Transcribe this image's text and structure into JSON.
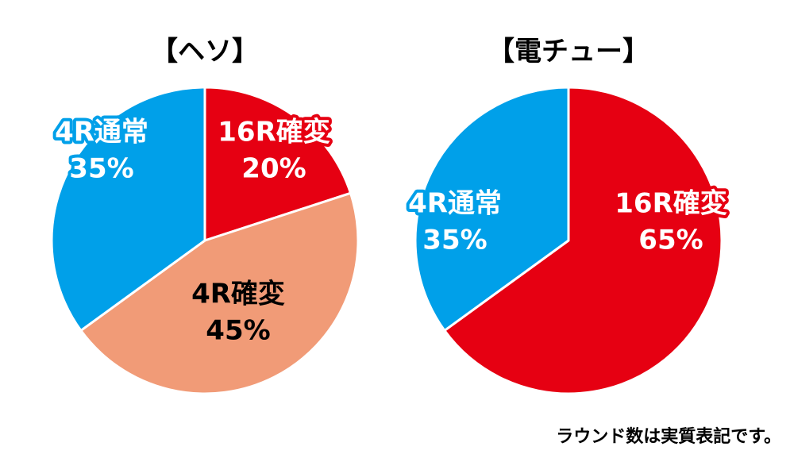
{
  "chart_data": [
    {
      "type": "pie",
      "title": "【ヘソ】",
      "slices": [
        {
          "label": "16R確変",
          "value": 20,
          "value_label": "20%",
          "color": "#e60012",
          "text_color": "#ffffff",
          "outline_color": "#e60012"
        },
        {
          "label": "4R確変",
          "value": 45,
          "value_label": "45%",
          "color": "#f19b77",
          "text_color": "#000000",
          "outline_color": "#f19b77"
        },
        {
          "label": "4R通常",
          "value": 35,
          "value_label": "35%",
          "color": "#00a0e9",
          "text_color": "#ffffff",
          "outline_color": "#00a0e9"
        }
      ]
    },
    {
      "type": "pie",
      "title": "【電チュー】",
      "slices": [
        {
          "label": "16R確変",
          "value": 65,
          "value_label": "65%",
          "color": "#e60012",
          "text_color": "#ffffff",
          "outline_color": "#e60012"
        },
        {
          "label": "4R通常",
          "value": 35,
          "value_label": "35%",
          "color": "#00a0e9",
          "text_color": "#ffffff",
          "outline_color": "#00a0e9"
        }
      ]
    }
  ],
  "footnote": "ラウンド数は実質表記です。"
}
